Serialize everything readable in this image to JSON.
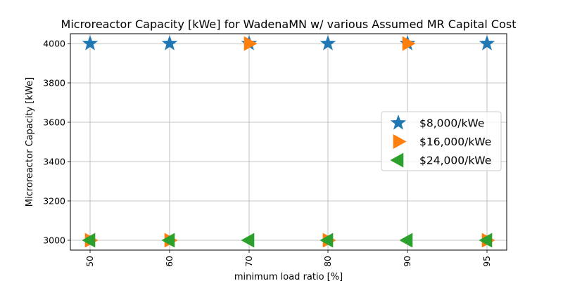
{
  "chart_data": {
    "type": "scatter",
    "title": "Microreactor Capacity [kWe] for WadenaMN w/ various Assumed MR Capital Cost",
    "xlabel": "minimum load ratio [%]",
    "ylabel": "Microreactor Capacity [kWe]",
    "categories": [
      "50",
      "60",
      "70",
      "80",
      "90",
      "95"
    ],
    "ylim": [
      2950,
      4050
    ],
    "yticks": [
      3000,
      3200,
      3400,
      3600,
      3800,
      4000
    ],
    "grid": true,
    "legend_position": "center-right",
    "series": [
      {
        "name": "$8,000/kWe",
        "marker": "star",
        "color": "#1f77b4",
        "values": [
          4000,
          4000,
          4000,
          4000,
          4000,
          4000
        ]
      },
      {
        "name": "$16,000/kWe",
        "marker": "triangle-right",
        "color": "#ff7f0e",
        "values": [
          3000,
          3000,
          4000,
          3000,
          4000,
          3000
        ]
      },
      {
        "name": "$24,000/kWe",
        "marker": "triangle-left",
        "color": "#2ca02c",
        "values": [
          3000,
          3000,
          3000,
          3000,
          3000,
          3000
        ]
      }
    ]
  }
}
